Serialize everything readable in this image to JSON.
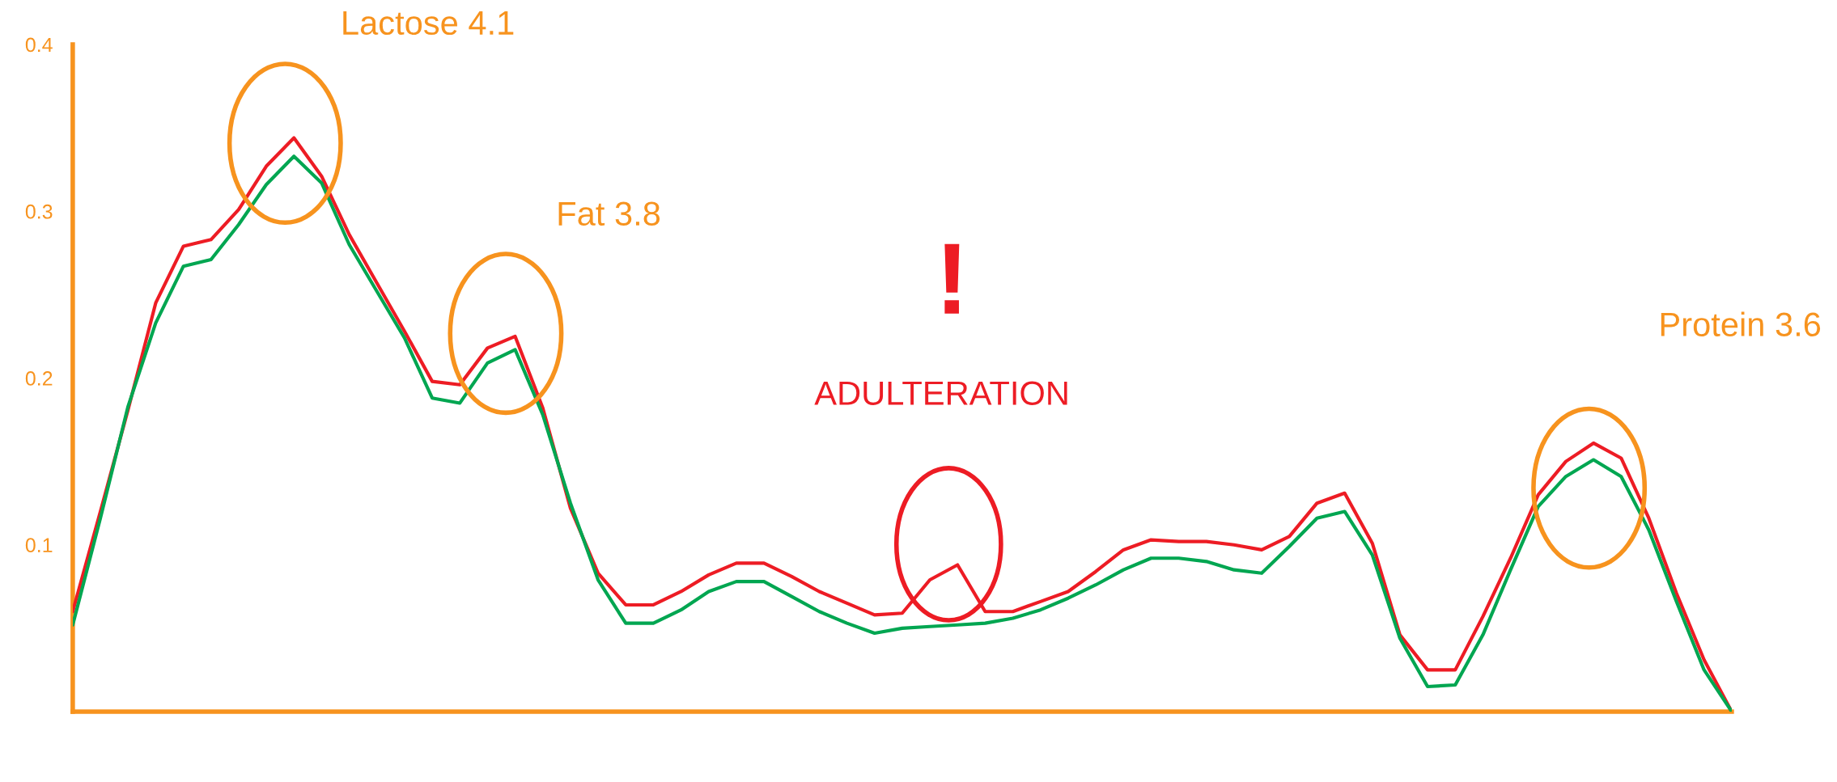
{
  "chart_data": {
    "type": "line",
    "categories": [
      null,
      null,
      null,
      null,
      null,
      null,
      null,
      null,
      null,
      null,
      null,
      null,
      null,
      null,
      null,
      null,
      null,
      null,
      null,
      null,
      null,
      null,
      null,
      null,
      null,
      null,
      null,
      null,
      null,
      null,
      null,
      null,
      null,
      null,
      null,
      null,
      null,
      null,
      null,
      null,
      null,
      null,
      null,
      null,
      null,
      null,
      null,
      null,
      null,
      null,
      null,
      null,
      null,
      null,
      null,
      null,
      null,
      null,
      null,
      null,
      null
    ],
    "ylim": [
      0,
      0.4
    ],
    "yticks": [
      0.1,
      0.2,
      0.3,
      0.4
    ],
    "grid": false,
    "legend": false,
    "line_style": "solid",
    "marker": "none",
    "series": [
      {
        "color": "#ed1c24",
        "values": [
          0.06,
          0.12,
          0.181,
          0.245,
          0.279,
          0.283,
          0.301,
          0.327,
          0.344,
          0.321,
          0.286,
          0.257,
          0.228,
          0.198,
          0.196,
          0.218,
          0.225,
          0.182,
          0.122,
          0.083,
          0.064,
          0.064,
          0.072,
          0.082,
          0.089,
          0.089,
          0.081,
          0.072,
          0.065,
          0.058,
          0.059,
          0.079,
          0.088,
          0.06,
          0.06,
          0.066,
          0.072,
          0.084,
          0.097,
          0.103,
          0.102,
          0.102,
          0.1,
          0.097,
          0.105,
          0.125,
          0.131,
          0.101,
          0.046,
          0.025,
          0.025,
          0.057,
          0.092,
          0.13,
          0.15,
          0.161,
          0.152,
          0.116,
          0.071,
          0.031,
          0.0
        ]
      },
      {
        "color": "#00a651",
        "values": [
          0.052,
          0.116,
          0.183,
          0.233,
          0.267,
          0.271,
          0.292,
          0.316,
          0.333,
          0.317,
          0.28,
          0.252,
          0.224,
          0.188,
          0.185,
          0.209,
          0.217,
          0.178,
          0.125,
          0.079,
          0.053,
          0.053,
          0.061,
          0.072,
          0.078,
          0.078,
          0.069,
          0.06,
          0.053,
          0.047,
          0.05,
          0.051,
          0.052,
          0.053,
          0.056,
          0.061,
          0.068,
          0.076,
          0.085,
          0.092,
          0.092,
          0.09,
          0.085,
          0.083,
          0.099,
          0.116,
          0.12,
          0.094,
          0.044,
          0.015,
          0.016,
          0.046,
          0.085,
          0.123,
          0.141,
          0.151,
          0.141,
          0.109,
          0.066,
          0.025,
          0.0
        ]
      }
    ],
    "annotations": [
      "Lactose 4.1",
      "Fat 3.8",
      "!",
      "ADULTERATION",
      "Protein 3.6"
    ]
  }
}
